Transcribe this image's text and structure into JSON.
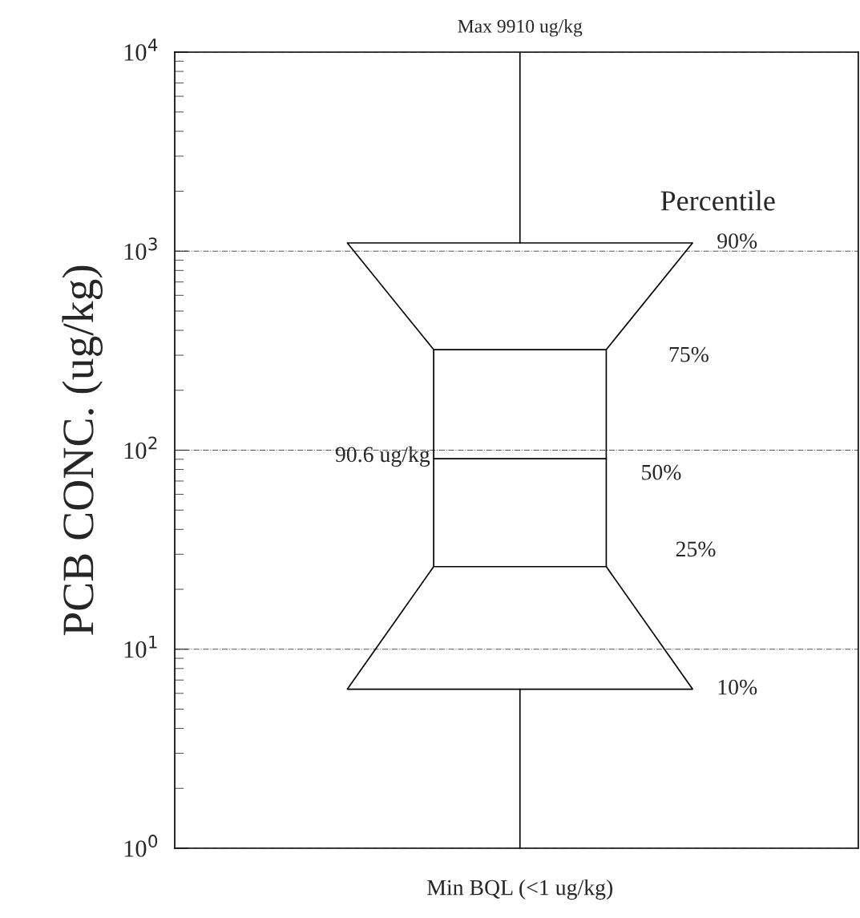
{
  "chart_data": {
    "type": "box",
    "ylabel": "PCB CONC. (ug/kg)",
    "categories": [
      null
    ],
    "boxes": [
      {
        "low": 1,
        "q1": 26,
        "median": 90.6,
        "q3": 320,
        "high": 9910
      }
    ],
    "log": true,
    "ylim": [
      1,
      10000
    ],
    "yticks": [
      {
        "value": 1,
        "label": "10$^{0}$"
      },
      {
        "value": 10,
        "label": "10$^{1}$"
      },
      {
        "value": 100,
        "label": "10$^{2}$"
      },
      {
        "value": 1000,
        "label": "10$^{3}$"
      },
      {
        "value": 10000,
        "label": "10$^{4}$"
      }
    ],
    "grid": "y",
    "ref_lines": [
      {
        "axis": "y",
        "value": 1100
      },
      {
        "axis": "y",
        "value": 6.3
      }
    ],
    "annotations": [
      "Max 9910 ug/kg",
      "Percentile",
      "90%",
      "75%",
      "50%",
      "25%",
      "10%",
      "90.6 ug/kg",
      "Min BQL (<1 ug/kg)"
    ]
  }
}
